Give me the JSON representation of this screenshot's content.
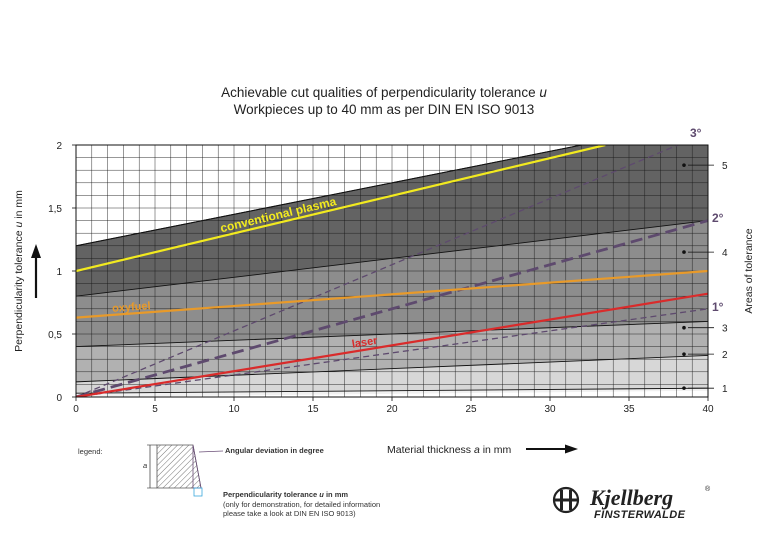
{
  "chart_data": {
    "type": "line",
    "title_line1": "Achievable cut qualities of perpendicularity tolerance ",
    "title_var": "u",
    "title_line2": "Workpieces up to 40 mm as per DIN EN ISO 9013",
    "ylabel_prefix": "Perpendicularity tolerance ",
    "ylabel_var": "u",
    "ylabel_suffix": " in mm",
    "xlabel_prefix": "Material thickness ",
    "xlabel_var": "a",
    "xlabel_suffix": " in mm",
    "right_axis_label": "Areas of tolerance",
    "xlim": [
      0,
      40
    ],
    "ylim": [
      0,
      2
    ],
    "x_ticks": [
      "0",
      "5",
      "10",
      "15",
      "20",
      "25",
      "30",
      "35",
      "40"
    ],
    "y_ticks": [
      {
        "value": 0,
        "label": "0"
      },
      {
        "value": 0.5,
        "label": "0,5"
      },
      {
        "value": 1,
        "label": "1"
      },
      {
        "value": 1.5,
        "label": "1,5"
      },
      {
        "value": 2,
        "label": "2"
      }
    ],
    "tolerance_ranges": [
      {
        "area": "1",
        "y0": [
          0,
          0.05
        ],
        "y1": [
          0.03,
          0.07
        ]
      },
      {
        "area": "2",
        "y0": [
          0.03,
          0.07
        ],
        "y1": [
          0.12,
          0.33
        ]
      },
      {
        "area": "3",
        "y0": [
          0.12,
          0.33
        ],
        "y1": [
          0.4,
          0.6
        ]
      },
      {
        "area": "4",
        "y0": [
          0.4,
          0.6
        ],
        "y1": [
          0.8,
          1.4
        ]
      },
      {
        "area": "5",
        "y0": [
          0.8,
          1.4
        ],
        "y1": [
          1.2,
          2.2
        ]
      }
    ],
    "area_labels": [
      {
        "label": "1",
        "y": 0.07
      },
      {
        "label": "2",
        "y": 0.34
      },
      {
        "label": "3",
        "y": 0.55
      },
      {
        "label": "4",
        "y": 1.15
      },
      {
        "label": "5",
        "y": 1.84
      }
    ],
    "series": [
      {
        "name": "conventional plasma",
        "x": [
          0,
          33.5
        ],
        "y": [
          1.0,
          2.0
        ],
        "color": "#f2ea1f"
      },
      {
        "name": "oxyfuel",
        "x": [
          0,
          40
        ],
        "y": [
          0.63,
          1.0
        ],
        "color": "#e89a2a"
      },
      {
        "name": "laser",
        "x": [
          0,
          40
        ],
        "y": [
          0.0,
          0.82
        ],
        "color": "#d92b2b"
      }
    ],
    "angle_lines": [
      {
        "label": "3°",
        "x": [
          0,
          40
        ],
        "y": [
          0,
          2.1
        ],
        "style": "thin-dashed"
      },
      {
        "label": "2°",
        "x": [
          0,
          40
        ],
        "y": [
          0,
          1.4
        ],
        "style": "thick-dashed"
      },
      {
        "label": "1°",
        "x": [
          0,
          40
        ],
        "y": [
          0,
          0.7
        ],
        "style": "thin-dashed"
      }
    ],
    "series_label_color_plasma": "#f2ea1f",
    "series_label_color_oxyfuel": "#e89a2a",
    "series_label_color_laser": "#d92b2b",
    "angle_color": "#5e4a6e"
  },
  "legend": {
    "title": "legend:",
    "dimension_label": "a",
    "angular_label": "Angular deviation in degree",
    "perp_label_prefix": "Perpendicularity tolerance ",
    "perp_label_var": "u",
    "perp_label_suffix": " in mm",
    "note_line1": "(only for demonstration, for detailed information",
    "note_line2": "please take a look at DIN EN ISO 9013)",
    "angular_color": "#6b4f78",
    "perp_color": "#3aa7dc"
  },
  "brand": {
    "name": "Kjellberg",
    "registered": "®",
    "subtitle": "FINSTERWALDE",
    "icon": "kjellberg-logo-icon"
  }
}
